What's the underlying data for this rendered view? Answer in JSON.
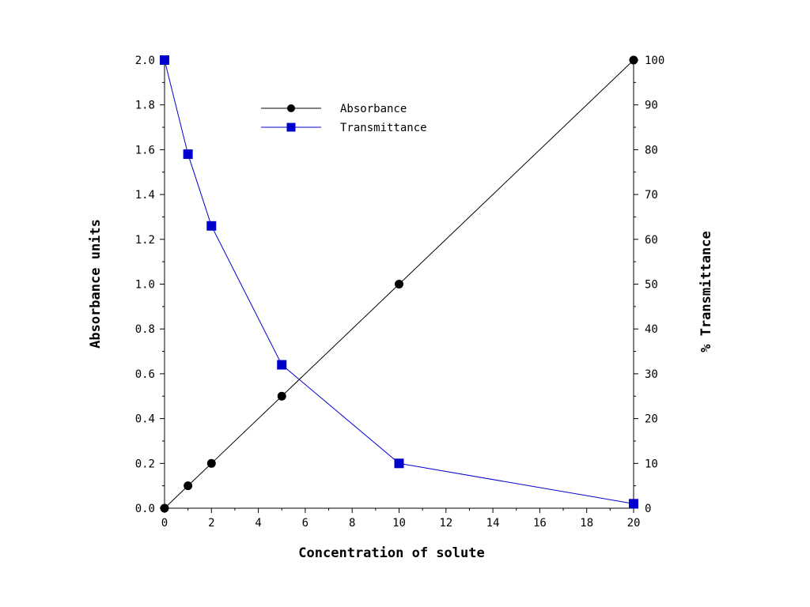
{
  "chart_data": {
    "type": "line",
    "xlabel": "Concentration of solute",
    "ylabel_left": "Absorbance units",
    "ylabel_right": "% Transmittance",
    "xlim": [
      0,
      20
    ],
    "ylim_left": [
      0,
      2.0
    ],
    "ylim_right": [
      0,
      100
    ],
    "x_ticks": [
      "0",
      "2",
      "4",
      "6",
      "8",
      "10",
      "12",
      "14",
      "16",
      "18",
      "20"
    ],
    "y_left_ticks": [
      "0.0",
      "0.2",
      "0.4",
      "0.6",
      "0.8",
      "1.0",
      "1.2",
      "1.4",
      "1.6",
      "1.8",
      "2.0"
    ],
    "y_right_ticks": [
      "0",
      "10",
      "20",
      "30",
      "40",
      "50",
      "60",
      "70",
      "80",
      "90",
      "100"
    ],
    "grid": false,
    "legend_position": "top-left",
    "series": [
      {
        "name": "Absorbance",
        "axis": "left",
        "color": "#000000",
        "marker": "circle",
        "x": [
          0,
          1,
          2,
          5,
          10,
          20
        ],
        "y": [
          0.0,
          0.1,
          0.2,
          0.5,
          1.0,
          2.0
        ]
      },
      {
        "name": "Transmittance",
        "axis": "right",
        "color": "#0000cc",
        "marker": "square",
        "x": [
          0,
          1,
          2,
          5,
          10,
          20
        ],
        "y": [
          100,
          79,
          63,
          32,
          10,
          1
        ]
      }
    ]
  }
}
